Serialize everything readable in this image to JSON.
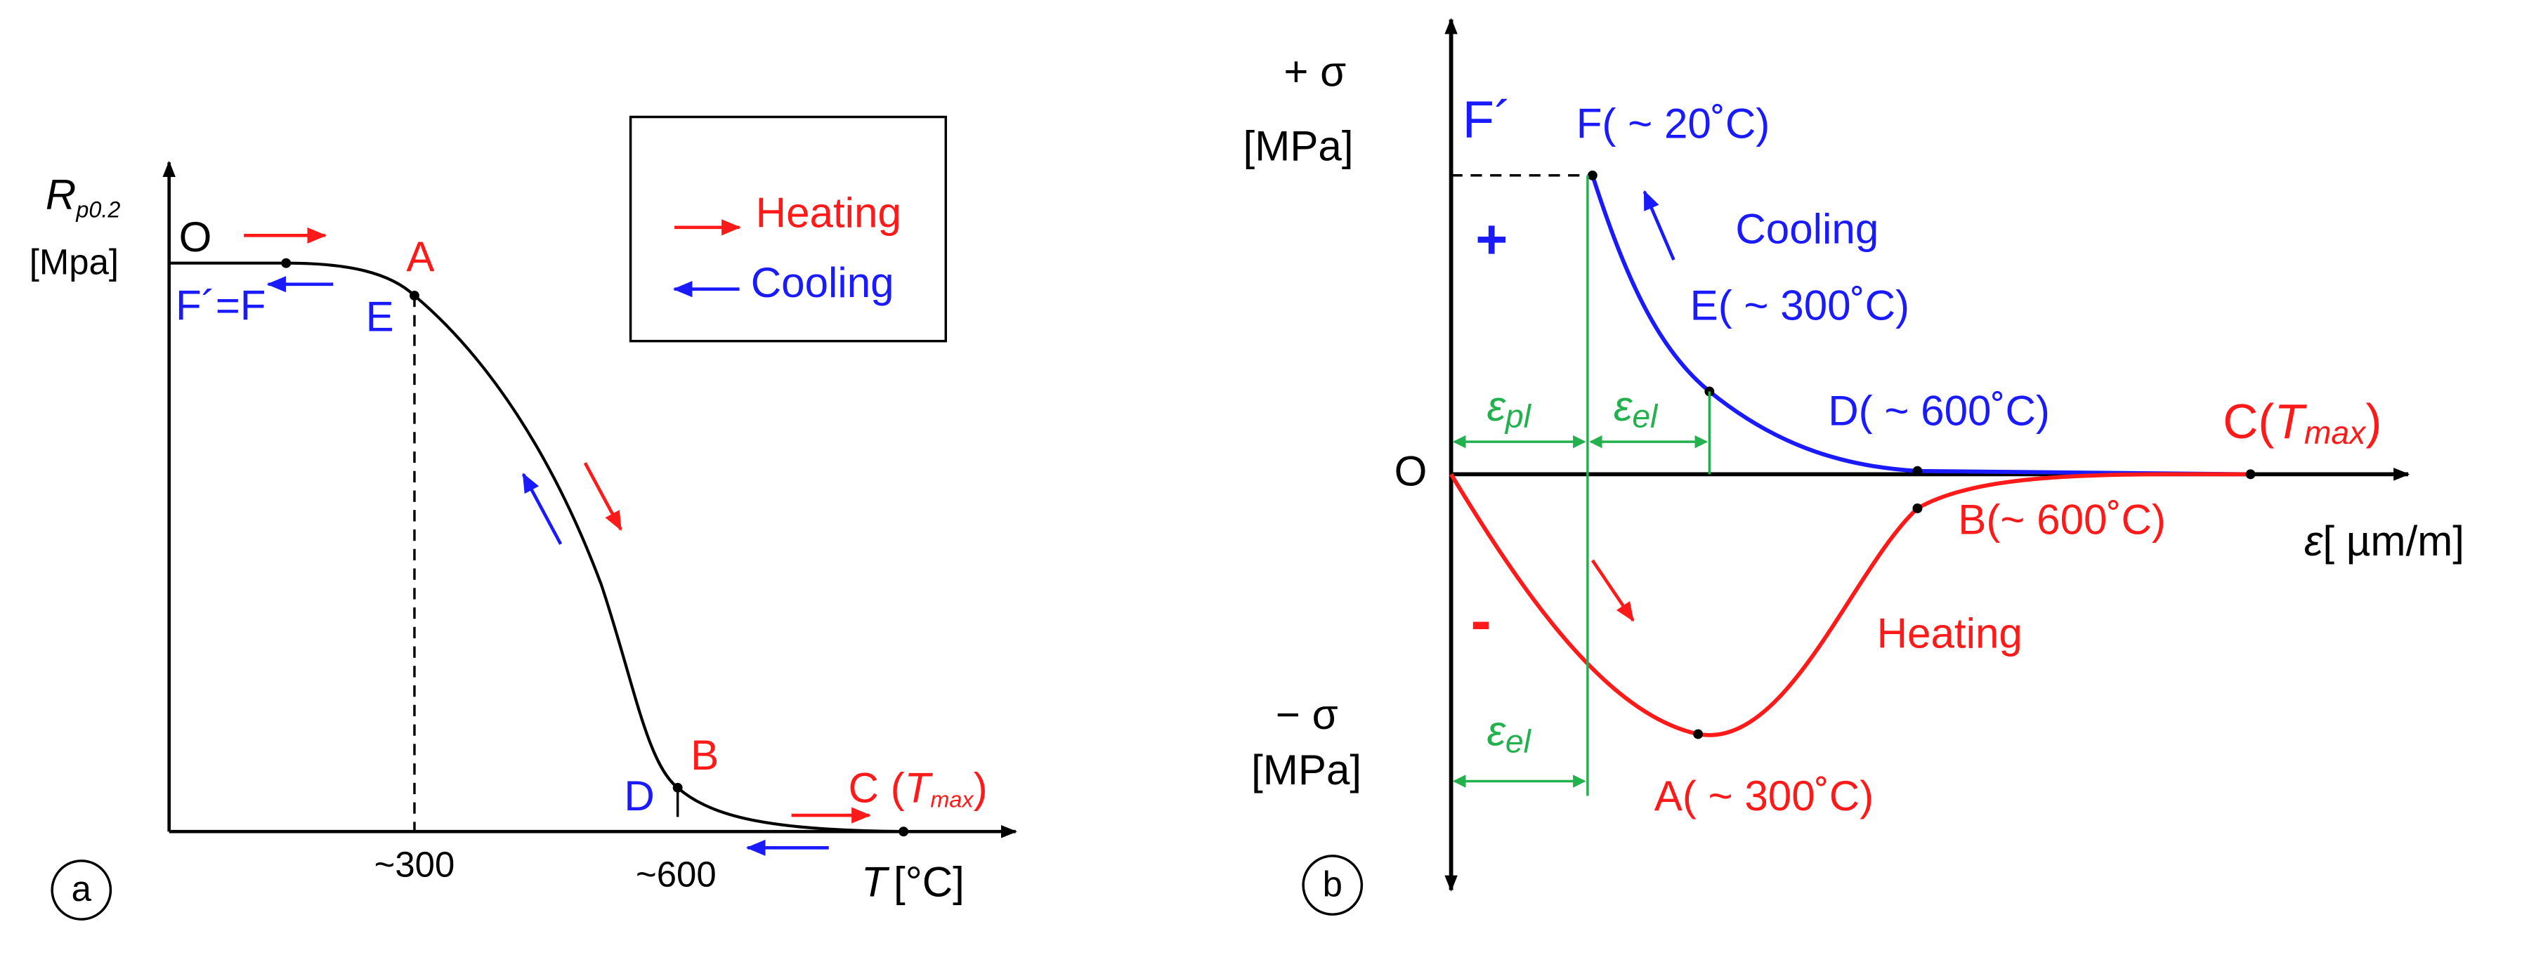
{
  "panel_a": {
    "y_label": {
      "symbol": "R",
      "subscript": "p0.2",
      "unit": "[Mpa]"
    },
    "points": {
      "O": "O",
      "A": "A",
      "E": "E",
      "F": "F´=F",
      "B": "B",
      "D": "D",
      "C": "C (",
      "C_T": "T",
      "C_sub": "max",
      "C_close": ")"
    },
    "legend": {
      "heating": "Heating",
      "cooling": "Cooling"
    },
    "x_ticks": [
      "~300",
      "~600"
    ],
    "x_label": {
      "symbol": "T",
      "unit": "[°C]"
    },
    "panel_label": "a"
  },
  "panel_b": {
    "y_top": {
      "sign": "+ σ",
      "unit": "[MPa]"
    },
    "y_bottom": {
      "sign": "− σ",
      "unit": "[MPa]"
    },
    "signs": {
      "plus": "+",
      "minus": "-"
    },
    "points": {
      "F_prime": "F´",
      "F": "F( ~ 20˚C)",
      "E": "E( ~ 300˚C)",
      "D": "D( ~ 600˚C)",
      "C": "C(",
      "C_T": "T",
      "C_sub": "max",
      "C_close": ")",
      "O": "O",
      "B": "B(~ 600˚C)",
      "A": "A( ~ 300˚C)"
    },
    "strains": {
      "pl_symbol": "ε",
      "pl_sub": "pl",
      "el_symbol": "ε",
      "el_sub": "el",
      "el2_symbol": "ε",
      "el2_sub": "el"
    },
    "annotations": {
      "cooling": "Cooling",
      "heating": "Heating"
    },
    "x_label": {
      "symbol": "ε",
      "unit": "[ µm/m]"
    },
    "panel_label": "b"
  }
}
